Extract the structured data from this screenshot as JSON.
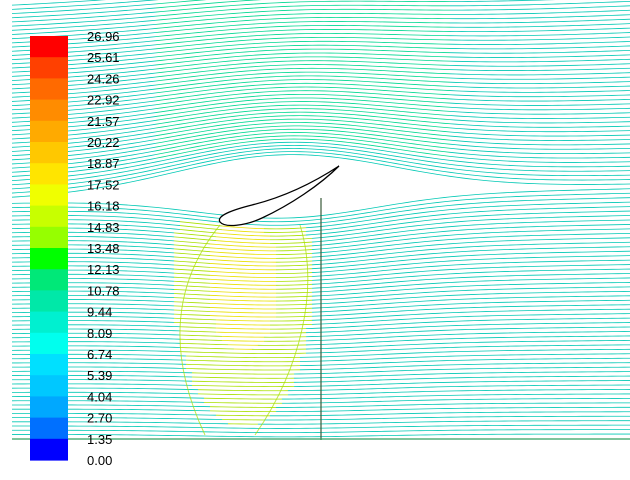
{
  "chart_data": {
    "type": "heatmap",
    "title": "",
    "xlabel": "",
    "ylabel": "",
    "description_of_marks": "streamlines colored by velocity magnitude around an inverted airfoil above a ground plane",
    "colorbar": {
      "labels": [
        "26.96",
        "25.61",
        "24.26",
        "22.92",
        "21.57",
        "20.22",
        "18.87",
        "17.52",
        "16.18",
        "14.83",
        "13.48",
        "12.13",
        "10.78",
        "9.44",
        "8.09",
        "6.74",
        "5.39",
        "4.04",
        "2.70",
        "1.35",
        "0.00"
      ],
      "values": [
        26.96,
        25.61,
        24.26,
        22.92,
        21.57,
        20.22,
        18.87,
        17.52,
        16.18,
        14.83,
        13.48,
        12.13,
        10.78,
        9.44,
        8.09,
        6.74,
        5.39,
        4.04,
        2.7,
        1.35,
        0.0
      ],
      "colors": [
        "#ff0000",
        "#ff4000",
        "#ff6a00",
        "#ff8c00",
        "#ffaa00",
        "#ffc800",
        "#ffe500",
        "#f0ff00",
        "#c8ff00",
        "#96ff00",
        "#00ff00",
        "#00e878",
        "#00e8a8",
        "#00f0d0",
        "#00ffee",
        "#00e0ff",
        "#00c8ff",
        "#00a8ff",
        "#0070ff",
        "#0000ff"
      ],
      "min": 0.0,
      "max": 26.96
    },
    "streamline_colors": {
      "freestream": "#00c8b4",
      "upper": "#00d890",
      "accelerated": "#a8e000",
      "peak": "#e8e000"
    },
    "grid": false,
    "legend": "left"
  }
}
